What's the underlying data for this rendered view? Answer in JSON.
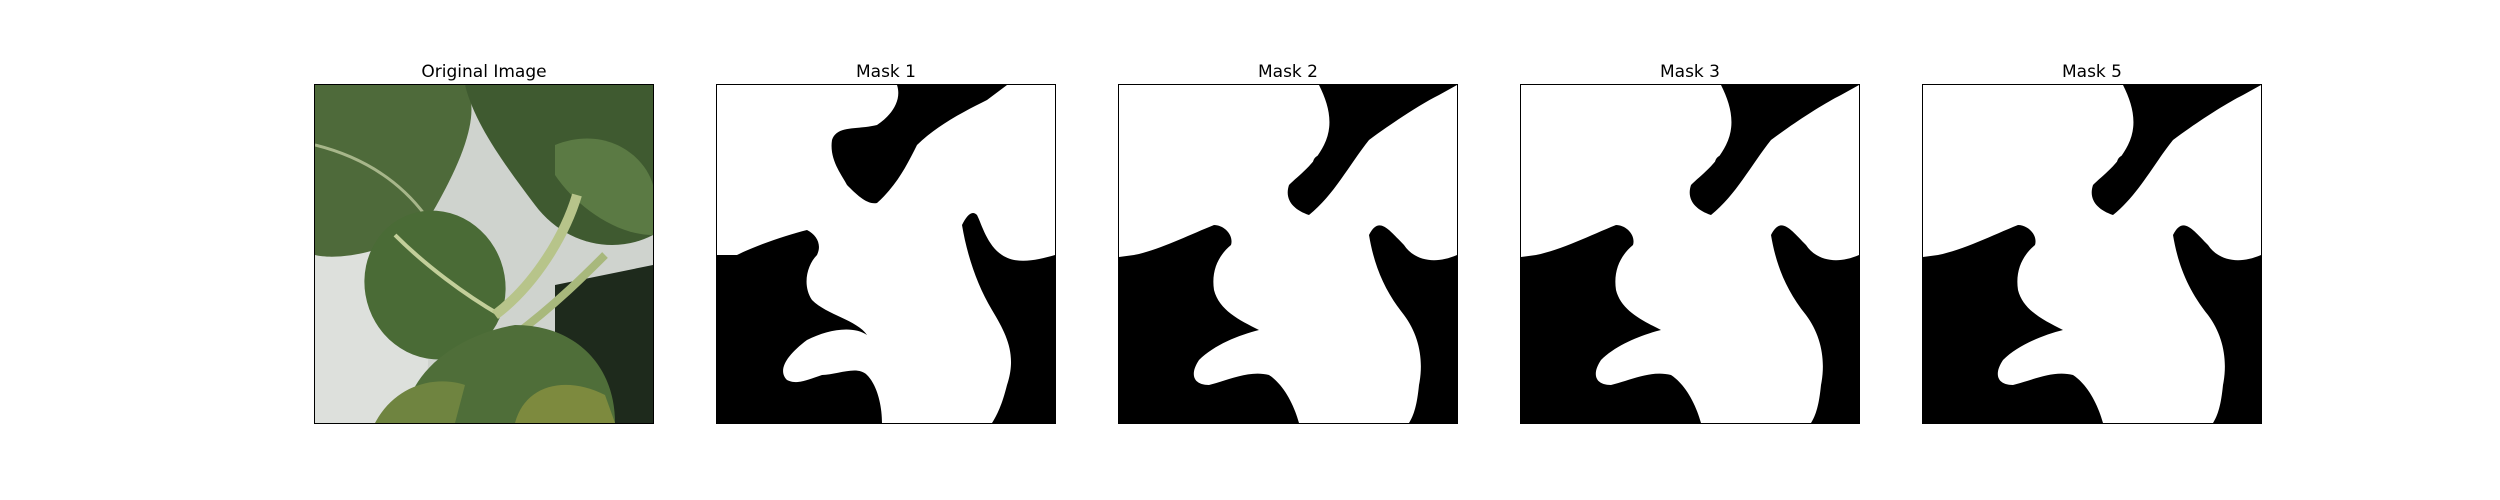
{
  "panels": [
    {
      "title": "Original Image",
      "kind": "photo"
    },
    {
      "title": "Mask 1",
      "kind": "mask"
    },
    {
      "title": "Mask 2",
      "kind": "mask"
    },
    {
      "title": "Mask 3",
      "kind": "mask"
    },
    {
      "title": "Mask 5",
      "kind": "mask"
    }
  ],
  "colors": {
    "mask_foreground": "#ffffff",
    "mask_background": "#000000",
    "leaf_dark": "#3d5a2c",
    "leaf_mid": "#56753d",
    "leaf_yellow": "#8b8a3a",
    "stem": "#b7c48a",
    "wall": "#d9dcd8"
  }
}
